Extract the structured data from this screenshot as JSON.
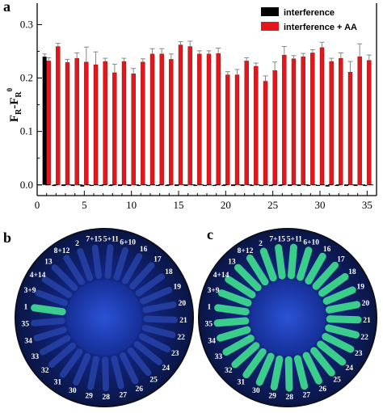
{
  "panels": {
    "a": "a",
    "b": "b",
    "c": "c"
  },
  "chart_data": {
    "type": "bar",
    "panel": "a",
    "xlabel": "",
    "ylabel_main": "F",
    "ylabel_sub1": "R",
    "ylabel_mid": "-F",
    "ylabel_sub2": "R",
    "ylabel_sup": "0",
    "xlim": [
      0,
      36
    ],
    "ylim": [
      -0.02,
      0.34
    ],
    "xticks": [
      0,
      5,
      10,
      15,
      20,
      25,
      30,
      35
    ],
    "yticks": [
      0.0,
      0.1,
      0.2,
      0.3
    ],
    "ytick_labels": [
      "0.0",
      "0.1",
      "0.2",
      "0.3"
    ],
    "legend": {
      "position": "top-right",
      "entries": [
        "interference",
        "interference + AA"
      ]
    },
    "colors": {
      "interference": "#000000",
      "interference_aa": "#e3161c"
    },
    "series": [
      {
        "name": "interference",
        "x": [
          1,
          2,
          3,
          4,
          5,
          6,
          7,
          8,
          9,
          10,
          11,
          12,
          13,
          14,
          15,
          16,
          17,
          18,
          19,
          20,
          21,
          22,
          23,
          24,
          25,
          26,
          27,
          28,
          29,
          30,
          31,
          32,
          33,
          34,
          35
        ],
        "values": [
          0.24,
          -0.002,
          -0.002,
          -0.002,
          -0.003,
          -0.002,
          -0.002,
          -0.002,
          -0.002,
          -0.002,
          -0.002,
          -0.002,
          -0.002,
          -0.002,
          -0.002,
          -0.002,
          -0.002,
          -0.002,
          -0.002,
          -0.002,
          -0.002,
          -0.002,
          -0.002,
          -0.002,
          -0.002,
          -0.002,
          -0.002,
          -0.002,
          -0.002,
          -0.002,
          -0.003,
          -0.002,
          -0.002,
          -0.002,
          -0.002
        ],
        "errors": [
          0.005,
          0,
          0,
          0,
          0,
          0,
          0,
          0,
          0,
          0,
          0,
          0,
          0,
          0,
          0,
          0,
          0,
          0,
          0,
          0,
          0,
          0,
          0,
          0,
          0,
          0,
          0,
          0,
          0,
          0,
          0,
          0,
          0,
          0,
          0
        ]
      },
      {
        "name": "interference + AA",
        "x": [
          1,
          2,
          3,
          4,
          5,
          6,
          7,
          8,
          9,
          10,
          11,
          12,
          13,
          14,
          15,
          16,
          17,
          18,
          19,
          20,
          21,
          22,
          23,
          24,
          25,
          26,
          27,
          28,
          29,
          30,
          31,
          32,
          33,
          34,
          35
        ],
        "values": [
          0.232,
          0.259,
          0.229,
          0.237,
          0.23,
          0.225,
          0.231,
          0.21,
          0.231,
          0.208,
          0.23,
          0.245,
          0.245,
          0.235,
          0.262,
          0.259,
          0.245,
          0.245,
          0.246,
          0.206,
          0.206,
          0.232,
          0.222,
          0.194,
          0.214,
          0.243,
          0.236,
          0.24,
          0.247,
          0.257,
          0.231,
          0.237,
          0.211,
          0.24,
          0.233
        ],
        "errors": [
          0.006,
          0.006,
          0.006,
          0.01,
          0.028,
          0.024,
          0.006,
          0.016,
          0.006,
          0.01,
          0.006,
          0.01,
          0.01,
          0.01,
          0.006,
          0.01,
          0.006,
          0.006,
          0.01,
          0.006,
          0.01,
          0.006,
          0.006,
          0.01,
          0.016,
          0.016,
          0.006,
          0.006,
          0.006,
          0.01,
          0.006,
          0.01,
          0.02,
          0.024,
          0.01
        ]
      }
    ]
  },
  "plates": {
    "b": {
      "labels": [
        "1",
        "3+9",
        "4+14",
        "13",
        "8+12",
        "2",
        "7+15",
        "5+11",
        "6+10",
        "16",
        "17",
        "18",
        "19",
        "20",
        "21",
        "22",
        "23",
        "24",
        "25",
        "26",
        "27",
        "28",
        "29",
        "30",
        "31",
        "32",
        "33",
        "34",
        "35"
      ],
      "glow": [
        1,
        0,
        0,
        0,
        0,
        0,
        0,
        0,
        0,
        0,
        0,
        0,
        0,
        0,
        0,
        0,
        0,
        0,
        0,
        0,
        0,
        0,
        0,
        0,
        0,
        0,
        0,
        0,
        0
      ]
    },
    "c": {
      "labels": [
        "1",
        "3+9",
        "4+14",
        "13",
        "8+12",
        "2",
        "7+15",
        "5+11",
        "6+10",
        "16",
        "17",
        "18",
        "19",
        "20",
        "21",
        "22",
        "23",
        "24",
        "25",
        "26",
        "27",
        "28",
        "29",
        "30",
        "31",
        "32",
        "33",
        "34",
        "35"
      ],
      "glow": [
        1,
        1,
        1,
        1,
        1,
        1,
        1,
        1,
        1,
        1,
        1,
        1,
        1,
        1,
        1,
        1,
        1,
        1,
        1,
        1,
        1,
        1,
        1,
        1,
        1,
        1,
        1,
        1,
        1
      ]
    }
  }
}
